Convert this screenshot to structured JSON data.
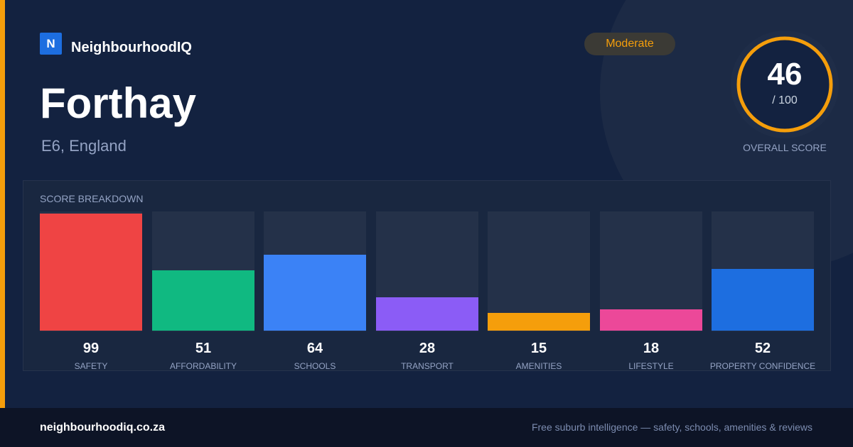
{
  "brand": {
    "logo_letter": "N",
    "name": "NeighbourhoodIQ"
  },
  "location": {
    "name": "Forthay",
    "region": "E6, England"
  },
  "rating_badge": {
    "label": "Moderate",
    "color": "#f59e0b"
  },
  "overall": {
    "score": "46",
    "denominator": "/ 100",
    "label": "OVERALL SCORE",
    "fraction": 0.46,
    "ring_color": "#f59e0b"
  },
  "breakdown": {
    "title": "SCORE BREAKDOWN"
  },
  "chart_data": {
    "type": "bar",
    "title": "SCORE BREAKDOWN",
    "categories": [
      "SAFETY",
      "AFFORDABILITY",
      "SCHOOLS",
      "TRANSPORT",
      "AMENITIES",
      "LIFESTYLE",
      "PROPERTY CONFIDENCE"
    ],
    "values": [
      99,
      51,
      64,
      28,
      15,
      18,
      52
    ],
    "colors": [
      "#ef4444",
      "#10b981",
      "#3b82f6",
      "#8b5cf6",
      "#f59e0b",
      "#ec4899",
      "#1d6ee0"
    ],
    "ylim": [
      0,
      100
    ],
    "grid": false
  },
  "footer": {
    "url": "neighbourhoodiq.co.za",
    "tagline": "Free suburb intelligence — safety, schools, amenities & reviews"
  }
}
